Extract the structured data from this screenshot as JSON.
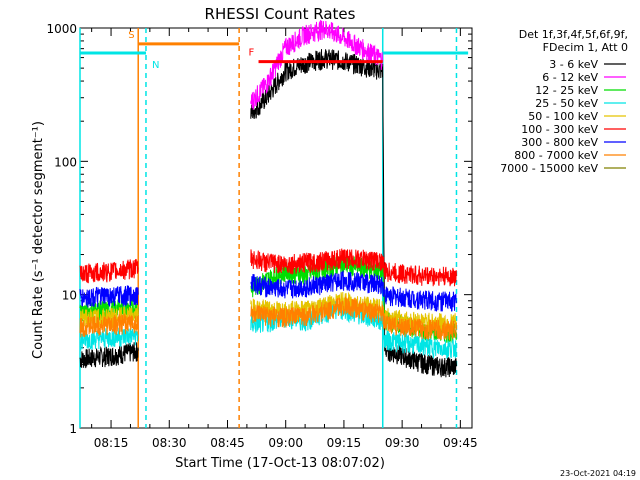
{
  "chart_data": {
    "type": "line",
    "title": "RHESSI Count Rates",
    "xlabel": "Start Time (17-Oct-13 08:07:02)",
    "ylabel": "Count Rate (s⁻¹ detector segment⁻¹)",
    "yscale": "log",
    "xlim": [
      "08:07",
      "09:48"
    ],
    "ylim": [
      1,
      1000
    ],
    "x_ticks": [
      "08:15",
      "08:30",
      "08:45",
      "09:00",
      "09:15",
      "09:30",
      "09:45"
    ],
    "y_ticks": [
      "1",
      "10",
      "100",
      "1000"
    ],
    "legend_header": [
      "Det 1f,3f,4f,5f,6f,9f,",
      "FDecim 1, Att 0"
    ],
    "legend_position": "right",
    "footer": "23-Oct-2021 04:19",
    "series": [
      {
        "name": "3 - 6 keV",
        "color": "#000000",
        "x": [
          "08:07",
          "08:15",
          "08:22",
          "08:22:30",
          "08:50",
          "08:51",
          "08:55",
          "09:00",
          "09:05",
          "09:10",
          "09:15",
          "09:20",
          "09:25",
          "09:25:30",
          "09:30",
          "09:35",
          "09:40",
          "09:44"
        ],
        "y": [
          3.3,
          3.5,
          3.8,
          null,
          null,
          230,
          300,
          480,
          550,
          600,
          570,
          520,
          480,
          3.9,
          3.5,
          3.1,
          2.9,
          2.9
        ]
      },
      {
        "name": "6 - 12 keV",
        "color": "#ff00ff",
        "x": [
          "08:50",
          "08:51",
          "08:55",
          "09:00",
          "09:05",
          "09:10",
          "09:15",
          "09:20",
          "09:25"
        ],
        "y": [
          null,
          280,
          380,
          720,
          900,
          1000,
          850,
          700,
          580
        ]
      },
      {
        "name": "12 - 25 keV",
        "color": "#00dd00",
        "x": [
          "08:07",
          "08:15",
          "08:22",
          "08:22:30",
          "08:50",
          "08:51",
          "08:55",
          "09:00",
          "09:05",
          "09:10",
          "09:15",
          "09:20",
          "09:25",
          "09:25:30",
          "09:30",
          "09:35",
          "09:40",
          "09:44"
        ],
        "y": [
          7.5,
          7.8,
          8.0,
          null,
          null,
          11,
          13,
          15,
          14,
          16,
          17,
          16,
          15,
          6.5,
          6.0,
          5.5,
          5.3,
          5.2
        ]
      },
      {
        "name": "25 - 50 keV",
        "color": "#00e5e5",
        "x": [
          "08:07",
          "08:15",
          "08:22",
          "08:22:30",
          "08:50",
          "08:51",
          "08:55",
          "09:00",
          "09:05",
          "09:10",
          "09:15",
          "09:20",
          "09:25",
          "09:25:30",
          "09:30",
          "09:35",
          "09:40",
          "09:44"
        ],
        "y": [
          4.6,
          4.8,
          5.0,
          null,
          null,
          6.0,
          6.2,
          6.8,
          6.3,
          7.4,
          7.8,
          7.0,
          6.4,
          4.6,
          4.4,
          4.2,
          4.0,
          4.0
        ]
      },
      {
        "name": "50 - 100 keV",
        "color": "#e5c400",
        "x": [
          "08:07",
          "08:15",
          "08:22",
          "08:22:30",
          "08:50",
          "08:51",
          "08:55",
          "09:00",
          "09:05",
          "09:10",
          "09:15",
          "09:20",
          "09:25",
          "09:25:30",
          "09:30",
          "09:35",
          "09:40",
          "09:44"
        ],
        "y": [
          6.6,
          6.8,
          7.0,
          null,
          null,
          8.0,
          7.8,
          7.6,
          7.8,
          8.3,
          9.0,
          8.4,
          7.8,
          6.8,
          6.5,
          6.3,
          6.2,
          6.2
        ]
      },
      {
        "name": "100 - 300 keV",
        "color": "#ff0000",
        "x": [
          "08:07",
          "08:15",
          "08:22",
          "08:22:30",
          "08:50",
          "08:51",
          "08:55",
          "09:00",
          "09:05",
          "09:10",
          "09:15",
          "09:20",
          "09:25",
          "09:25:30",
          "09:30",
          "09:35",
          "09:40",
          "09:44"
        ],
        "y": [
          14.5,
          15,
          16,
          null,
          null,
          19,
          17.5,
          17,
          17.5,
          18,
          19,
          18.5,
          18,
          15,
          14.5,
          14,
          13.8,
          13.8
        ]
      },
      {
        "name": "300 - 800 keV",
        "color": "#0000ff",
        "x": [
          "08:07",
          "08:15",
          "08:22",
          "08:22:30",
          "08:50",
          "08:51",
          "08:55",
          "09:00",
          "09:05",
          "09:10",
          "09:15",
          "09:20",
          "09:25",
          "09:25:30",
          "09:30",
          "09:35",
          "09:40",
          "09:44"
        ],
        "y": [
          9.5,
          9.8,
          10,
          null,
          null,
          12.5,
          11.5,
          11,
          11.5,
          12,
          13,
          12.5,
          12,
          10,
          9.6,
          9.3,
          9.0,
          9.0
        ]
      },
      {
        "name": "800 - 7000 keV",
        "color": "#ff8000",
        "x": [
          "08:07",
          "08:15",
          "08:22",
          "08:22:30",
          "08:50",
          "08:51",
          "08:55",
          "09:00",
          "09:05",
          "09:10",
          "09:15",
          "09:20",
          "09:25",
          "09:25:30",
          "09:30",
          "09:35",
          "09:40",
          "09:44"
        ],
        "y": [
          5.8,
          6.0,
          6.2,
          null,
          null,
          7.2,
          7.0,
          6.8,
          7.0,
          7.6,
          8.3,
          7.7,
          7.2,
          6.0,
          5.8,
          5.6,
          5.5,
          5.5
        ]
      },
      {
        "name": "7000 - 15000 keV",
        "color": "#808000",
        "x": [],
        "y": []
      }
    ],
    "annotations": [
      {
        "label": "S",
        "kind": "segment",
        "x_start": "08:22",
        "x_end": "08:48",
        "y": 760,
        "color": "#ff8000"
      },
      {
        "label": "N",
        "kind": "segment",
        "x_start": "08:07",
        "x_end": "08:24",
        "y": 650,
        "color": "#00e5e5"
      },
      {
        "label": "",
        "kind": "segment",
        "x_start": "09:25",
        "x_end": "09:47",
        "y": 650,
        "color": "#00e5e5"
      },
      {
        "label": "F",
        "kind": "segment",
        "x_start": "08:53",
        "x_end": "09:25",
        "y": 560,
        "color": "#ff0000"
      }
    ],
    "vertical_markers": [
      {
        "x": "08:07",
        "color": "#00e5e5",
        "style": "solid"
      },
      {
        "x": "08:22",
        "color": "#ff8000",
        "style": "solid"
      },
      {
        "x": "08:24",
        "color": "#00e5e5",
        "style": "dashed"
      },
      {
        "x": "08:48",
        "color": "#ff8000",
        "style": "dashed"
      },
      {
        "x": "09:25",
        "color": "#00e5e5",
        "style": "solid"
      },
      {
        "x": "09:44",
        "color": "#00e5e5",
        "style": "dashed"
      }
    ]
  }
}
